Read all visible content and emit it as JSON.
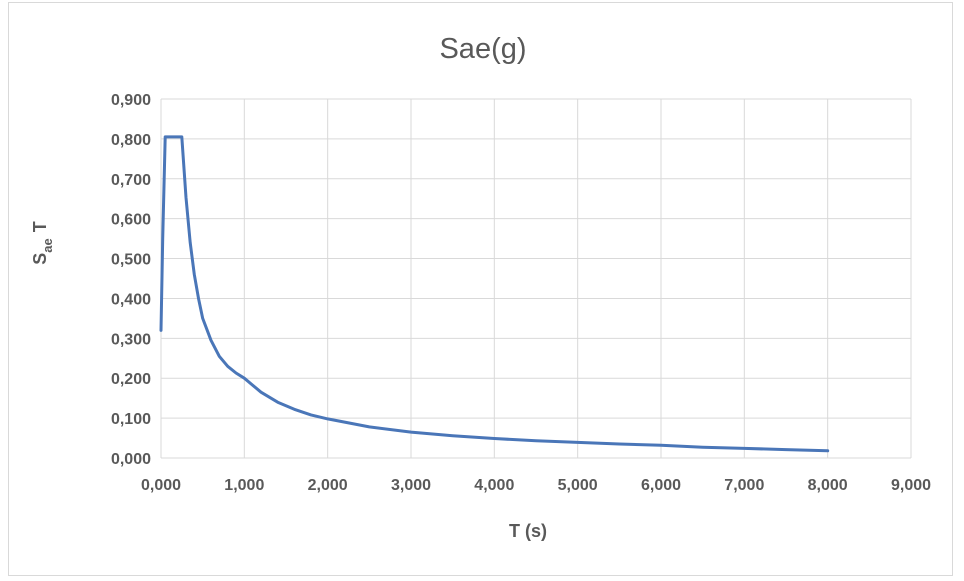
{
  "chart_data": {
    "type": "line",
    "title": "Sae(g)",
    "xlabel": "T (s)",
    "ylabel_main": "S",
    "ylabel_sub": "ae",
    "ylabel_suffix": "T",
    "xlim": [
      0,
      9
    ],
    "ylim": [
      0,
      0.9
    ],
    "x_ticks": [
      0,
      1,
      2,
      3,
      4,
      5,
      6,
      7,
      8,
      9
    ],
    "x_tick_labels": [
      "0,000",
      "1,000",
      "2,000",
      "3,000",
      "4,000",
      "5,000",
      "6,000",
      "7,000",
      "8,000",
      "9,000"
    ],
    "y_ticks": [
      0,
      0.1,
      0.2,
      0.3,
      0.4,
      0.5,
      0.6,
      0.7,
      0.8,
      0.9
    ],
    "y_tick_labels": [
      "0,000",
      "0,100",
      "0,200",
      "0,300",
      "0,400",
      "0,500",
      "0,600",
      "0,700",
      "0,800",
      "0,900"
    ],
    "grid": true,
    "legend": "none",
    "series": [
      {
        "color": "#4a76b8",
        "x": [
          0,
          0.02,
          0.05,
          0.07,
          0.1,
          0.15,
          0.2,
          0.25,
          0.3,
          0.35,
          0.4,
          0.45,
          0.5,
          0.6,
          0.7,
          0.8,
          0.9,
          1.0,
          1.2,
          1.4,
          1.6,
          1.8,
          2.0,
          2.5,
          3.0,
          3.5,
          4.0,
          4.5,
          5.0,
          5.5,
          6.0,
          6.5,
          7.0,
          7.5,
          8.0
        ],
        "y": [
          0.32,
          0.55,
          0.805,
          0.805,
          0.805,
          0.805,
          0.805,
          0.805,
          0.653,
          0.54,
          0.46,
          0.4,
          0.35,
          0.295,
          0.255,
          0.23,
          0.213,
          0.2,
          0.165,
          0.14,
          0.122,
          0.108,
          0.098,
          0.078,
          0.065,
          0.056,
          0.049,
          0.043,
          0.039,
          0.035,
          0.032,
          0.027,
          0.024,
          0.021,
          0.018
        ]
      }
    ]
  }
}
